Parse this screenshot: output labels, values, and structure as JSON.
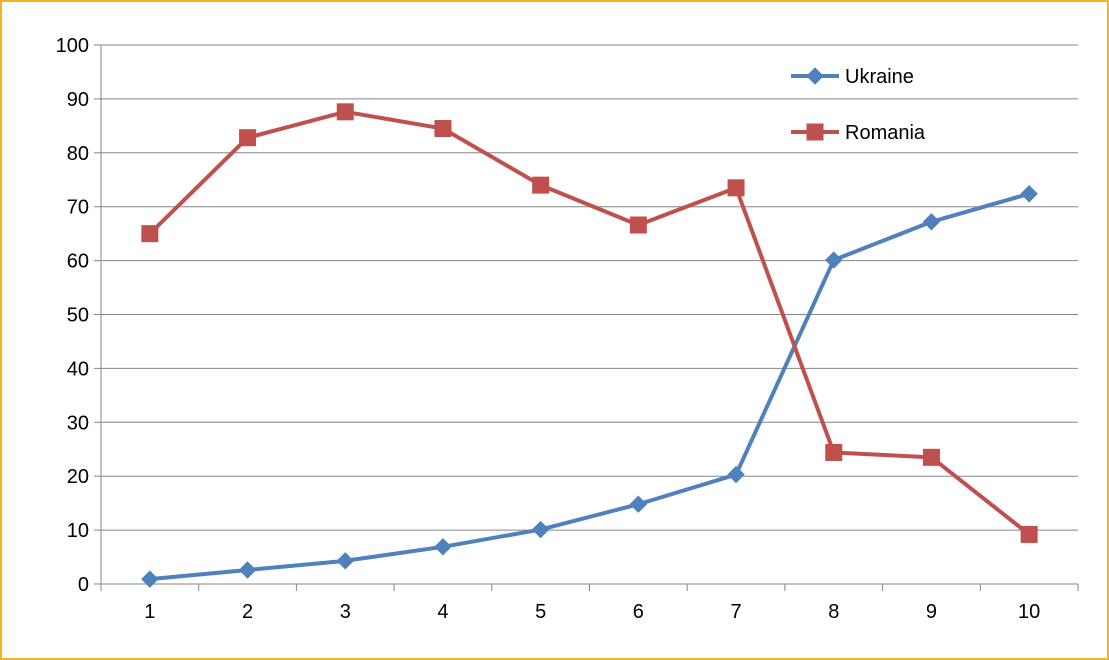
{
  "chart_data": {
    "type": "line",
    "title": "",
    "xlabel": "",
    "ylabel": "",
    "x": [
      1,
      2,
      3,
      4,
      5,
      6,
      7,
      8,
      9,
      10
    ],
    "x_tick_labels": [
      "1",
      "2",
      "3",
      "4",
      "5",
      "6",
      "7",
      "8",
      "9",
      "10"
    ],
    "ylim": [
      0,
      100
    ],
    "y_ticks": [
      0,
      10,
      20,
      30,
      40,
      50,
      60,
      70,
      80,
      90,
      100
    ],
    "y_tick_labels": [
      "0",
      "10",
      "20",
      "30",
      "40",
      "50",
      "60",
      "70",
      "80",
      "90",
      "100"
    ],
    "grid": "horizontal",
    "legend_position": "top-right",
    "series": [
      {
        "name": "Ukraine",
        "color": "#4f81bd",
        "marker": "diamond",
        "values": [
          0.9,
          2.6,
          4.3,
          6.9,
          10.1,
          14.8,
          20.3,
          60.1,
          67.2,
          72.4
        ]
      },
      {
        "name": "Romania",
        "color": "#c0504d",
        "marker": "square",
        "values": [
          65.0,
          82.8,
          87.6,
          84.5,
          74.0,
          66.6,
          73.5,
          24.4,
          23.5,
          9.2
        ]
      }
    ]
  }
}
